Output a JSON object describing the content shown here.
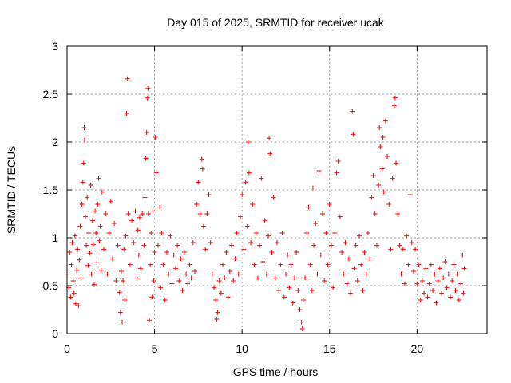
{
  "chart_data": {
    "type": "scatter",
    "title": "Day 015 of 2025, SRMTID for receiver ucak",
    "xlabel": "GPS time / hours",
    "ylabel": "SRMTID / TECUs",
    "xlim": [
      0,
      24
    ],
    "ylim": [
      0,
      3
    ],
    "xticks": [
      0,
      5,
      10,
      15,
      20
    ],
    "yticks": [
      0,
      0.5,
      1,
      1.5,
      2,
      2.5,
      3
    ],
    "xtick_labels": [
      "0",
      "5",
      "10",
      "15",
      "20"
    ],
    "ytick_labels": [
      "0",
      "0.5",
      "1",
      "1.5",
      "2",
      "2.5",
      "3"
    ],
    "grid": true,
    "marker": "+",
    "color": "#ff0000",
    "series": [
      {
        "name": "SRMTID",
        "points": [
          [
            0.0,
            0.62
          ],
          [
            0.1,
            0.48
          ],
          [
            0.15,
            0.85
          ],
          [
            0.2,
            0.38
          ],
          [
            0.25,
            0.72
          ],
          [
            0.3,
            0.95
          ],
          [
            0.35,
            0.55
          ],
          [
            0.4,
            0.42
          ],
          [
            0.45,
            1.02
          ],
          [
            0.5,
            0.31
          ],
          [
            0.55,
            0.66
          ],
          [
            0.6,
            0.88
          ],
          [
            0.65,
            0.29
          ],
          [
            0.7,
            0.77
          ],
          [
            0.75,
            1.12
          ],
          [
            0.8,
            0.58
          ],
          [
            0.85,
            1.35
          ],
          [
            0.9,
            1.58
          ],
          [
            0.95,
            1.78
          ],
          [
            0.98,
            2.15
          ],
          [
            1.0,
            2.02
          ],
          [
            1.05,
            1.22
          ],
          [
            1.1,
            0.92
          ],
          [
            1.15,
            1.42
          ],
          [
            1.2,
            0.71
          ],
          [
            1.25,
            1.05
          ],
          [
            1.3,
            0.84
          ],
          [
            1.35,
            1.55
          ],
          [
            1.4,
            0.62
          ],
          [
            1.45,
            1.18
          ],
          [
            1.5,
            0.93
          ],
          [
            1.55,
            0.51
          ],
          [
            1.6,
            1.28
          ],
          [
            1.65,
            1.05
          ],
          [
            1.7,
            0.74
          ],
          [
            1.75,
            1.35
          ],
          [
            1.8,
            1.62
          ],
          [
            1.85,
            0.97
          ],
          [
            1.9,
            1.12
          ],
          [
            1.95,
            0.66
          ],
          [
            2.0,
            1.48
          ],
          [
            2.1,
            0.88
          ],
          [
            2.2,
            1.25
          ],
          [
            2.3,
            0.62
          ],
          [
            2.4,
            1.05
          ],
          [
            2.5,
            1.38
          ],
          [
            2.6,
            0.78
          ],
          [
            2.7,
            1.15
          ],
          [
            2.8,
            0.55
          ],
          [
            2.9,
            0.92
          ],
          [
            3.0,
            0.43
          ],
          [
            3.05,
            0.22
          ],
          [
            3.1,
            0.65
          ],
          [
            3.15,
            0.12
          ],
          [
            3.2,
            0.55
          ],
          [
            3.25,
            0.88
          ],
          [
            3.3,
            0.35
          ],
          [
            3.35,
            1.02
          ],
          [
            3.4,
            2.3
          ],
          [
            3.45,
            2.66
          ],
          [
            3.5,
            1.25
          ],
          [
            3.6,
            0.72
          ],
          [
            3.7,
            1.18
          ],
          [
            3.8,
            0.95
          ],
          [
            3.9,
            1.28
          ],
          [
            4.0,
            0.58
          ],
          [
            4.05,
            1.08
          ],
          [
            4.1,
            0.82
          ],
          [
            4.15,
            1.21
          ],
          [
            4.2,
            0.68
          ],
          [
            4.3,
            1.25
          ],
          [
            4.4,
            0.92
          ],
          [
            4.45,
            1.42
          ],
          [
            4.5,
            1.83
          ],
          [
            4.55,
            2.1
          ],
          [
            4.6,
            2.46
          ],
          [
            4.62,
            2.56
          ],
          [
            4.65,
            1.25
          ],
          [
            4.7,
            0.14
          ],
          [
            4.75,
            0.72
          ],
          [
            4.8,
            1.05
          ],
          [
            4.85,
            0.38
          ],
          [
            4.9,
            1.28
          ],
          [
            4.95,
            0.55
          ],
          [
            5.0,
            0.85
          ],
          [
            5.05,
            2.05
          ],
          [
            5.1,
            1.68
          ],
          [
            5.2,
            0.92
          ],
          [
            5.3,
            1.32
          ],
          [
            5.35,
            0.48
          ],
          [
            5.4,
            1.05
          ],
          [
            5.5,
            0.72
          ],
          [
            5.6,
            0.35
          ],
          [
            5.7,
            0.85
          ],
          [
            5.8,
            0.62
          ],
          [
            5.9,
            1.02
          ],
          [
            6.0,
            0.52
          ],
          [
            6.1,
            0.82
          ],
          [
            6.2,
            0.68
          ],
          [
            6.3,
            0.92
          ],
          [
            6.4,
            0.55
          ],
          [
            6.5,
            0.78
          ],
          [
            6.6,
            0.45
          ],
          [
            6.7,
            0.85
          ],
          [
            6.8,
            0.62
          ],
          [
            6.9,
            0.52
          ],
          [
            7.0,
            0.72
          ],
          [
            7.1,
            0.58
          ],
          [
            7.2,
            0.95
          ],
          [
            7.3,
            0.65
          ],
          [
            7.4,
            1.35
          ],
          [
            7.5,
            1.58
          ],
          [
            7.6,
            1.25
          ],
          [
            7.7,
            1.82
          ],
          [
            7.75,
            1.72
          ],
          [
            7.8,
            1.12
          ],
          [
            7.9,
            0.88
          ],
          [
            8.0,
            1.25
          ],
          [
            8.1,
            1.45
          ],
          [
            8.2,
            0.95
          ],
          [
            8.3,
            0.62
          ],
          [
            8.4,
            0.48
          ],
          [
            8.5,
            0.35
          ],
          [
            8.55,
            0.15
          ],
          [
            8.6,
            0.22
          ],
          [
            8.7,
            0.55
          ],
          [
            8.8,
            0.42
          ],
          [
            8.9,
            0.72
          ],
          [
            9.0,
            0.58
          ],
          [
            9.1,
            0.85
          ],
          [
            9.2,
            0.38
          ],
          [
            9.3,
            0.65
          ],
          [
            9.4,
            0.92
          ],
          [
            9.5,
            0.55
          ],
          [
            9.6,
            0.78
          ],
          [
            9.7,
            1.05
          ],
          [
            9.8,
            0.62
          ],
          [
            9.9,
            1.22
          ],
          [
            10.0,
            1.45
          ],
          [
            10.1,
            0.88
          ],
          [
            10.2,
            1.58
          ],
          [
            10.3,
            1.12
          ],
          [
            10.35,
            2.0
          ],
          [
            10.4,
            1.68
          ],
          [
            10.5,
            0.95
          ],
          [
            10.6,
            1.35
          ],
          [
            10.7,
            0.72
          ],
          [
            10.8,
            1.05
          ],
          [
            10.9,
            0.58
          ],
          [
            11.0,
            0.92
          ],
          [
            11.1,
            1.62
          ],
          [
            11.2,
            0.75
          ],
          [
            11.3,
            1.18
          ],
          [
            11.4,
            0.62
          ],
          [
            11.5,
            1.02
          ],
          [
            11.55,
            2.04
          ],
          [
            11.6,
            1.88
          ],
          [
            11.7,
            0.85
          ],
          [
            11.8,
            1.42
          ],
          [
            11.9,
            0.58
          ],
          [
            12.0,
            0.95
          ],
          [
            12.1,
            0.45
          ],
          [
            12.2,
            0.72
          ],
          [
            12.3,
            1.05
          ],
          [
            12.4,
            0.38
          ],
          [
            12.5,
            0.62
          ],
          [
            12.6,
            0.82
          ],
          [
            12.7,
            0.48
          ],
          [
            12.8,
            0.72
          ],
          [
            12.9,
            0.32
          ],
          [
            13.0,
            0.58
          ],
          [
            13.1,
            0.85
          ],
          [
            13.2,
            0.45
          ],
          [
            13.3,
            0.25
          ],
          [
            13.4,
            0.12
          ],
          [
            13.45,
            0.05
          ],
          [
            13.5,
            0.35
          ],
          [
            13.6,
            0.58
          ],
          [
            13.7,
            1.05
          ],
          [
            13.8,
            1.32
          ],
          [
            13.9,
            0.72
          ],
          [
            14.0,
            0.45
          ],
          [
            14.05,
            1.52
          ],
          [
            14.1,
            0.92
          ],
          [
            14.2,
            1.15
          ],
          [
            14.3,
            0.62
          ],
          [
            14.4,
            1.7
          ],
          [
            14.5,
            0.82
          ],
          [
            14.6,
            1.25
          ],
          [
            14.7,
            0.55
          ],
          [
            14.8,
            1.05
          ],
          [
            14.9,
            0.72
          ],
          [
            15.0,
            1.35
          ],
          [
            15.1,
            0.92
          ],
          [
            15.2,
            0.48
          ],
          [
            15.3,
            1.05
          ],
          [
            15.4,
            1.68
          ],
          [
            15.5,
            1.8
          ],
          [
            15.6,
            1.22
          ],
          [
            15.7,
            0.85
          ],
          [
            15.8,
            0.62
          ],
          [
            15.9,
            0.95
          ],
          [
            16.0,
            0.52
          ],
          [
            16.1,
            0.78
          ],
          [
            16.2,
            0.42
          ],
          [
            16.3,
            2.32
          ],
          [
            16.35,
            2.08
          ],
          [
            16.4,
            0.68
          ],
          [
            16.5,
            0.92
          ],
          [
            16.6,
            0.55
          ],
          [
            16.7,
            1.02
          ],
          [
            16.8,
            0.72
          ],
          [
            16.9,
            0.45
          ],
          [
            17.0,
            0.85
          ],
          [
            17.1,
            0.62
          ],
          [
            17.2,
            1.05
          ],
          [
            17.3,
            0.78
          ],
          [
            17.4,
            1.42
          ],
          [
            17.5,
            1.65
          ],
          [
            17.6,
            1.25
          ],
          [
            17.7,
            0.92
          ],
          [
            17.8,
            1.55
          ],
          [
            17.85,
            2.15
          ],
          [
            17.9,
            1.95
          ],
          [
            18.0,
            1.72
          ],
          [
            18.05,
            2.05
          ],
          [
            18.1,
            1.48
          ],
          [
            18.2,
            2.22
          ],
          [
            18.3,
            1.85
          ],
          [
            18.4,
            1.35
          ],
          [
            18.5,
            0.88
          ],
          [
            18.6,
            1.62
          ],
          [
            18.7,
            2.38
          ],
          [
            18.75,
            2.46
          ],
          [
            18.8,
            1.78
          ],
          [
            18.9,
            1.25
          ],
          [
            19.0,
            0.92
          ],
          [
            19.1,
            0.62
          ],
          [
            19.2,
            0.88
          ],
          [
            19.3,
            0.52
          ],
          [
            19.4,
            1.02
          ],
          [
            19.5,
            0.72
          ],
          [
            19.6,
            1.45
          ],
          [
            19.7,
            0.95
          ],
          [
            19.8,
            0.65
          ],
          [
            19.9,
            0.88
          ],
          [
            20.0,
            0.52
          ],
          [
            20.1,
            0.72
          ],
          [
            20.2,
            0.35
          ],
          [
            20.3,
            0.55
          ],
          [
            20.4,
            0.42
          ],
          [
            20.5,
            0.68
          ],
          [
            20.6,
            0.38
          ],
          [
            20.7,
            0.52
          ],
          [
            20.8,
            0.72
          ],
          [
            20.9,
            0.45
          ],
          [
            21.0,
            0.62
          ],
          [
            21.1,
            0.32
          ],
          [
            21.2,
            0.55
          ],
          [
            21.3,
            0.68
          ],
          [
            21.4,
            0.42
          ],
          [
            21.5,
            0.58
          ],
          [
            21.6,
            0.75
          ],
          [
            21.7,
            0.48
          ],
          [
            21.8,
            0.62
          ],
          [
            21.9,
            0.38
          ],
          [
            22.0,
            0.55
          ],
          [
            22.1,
            0.72
          ],
          [
            22.2,
            0.45
          ],
          [
            22.3,
            0.62
          ],
          [
            22.4,
            0.35
          ],
          [
            22.5,
            0.52
          ],
          [
            22.6,
            0.82
          ],
          [
            22.65,
            0.42
          ],
          [
            22.7,
            0.68
          ]
        ]
      }
    ]
  }
}
